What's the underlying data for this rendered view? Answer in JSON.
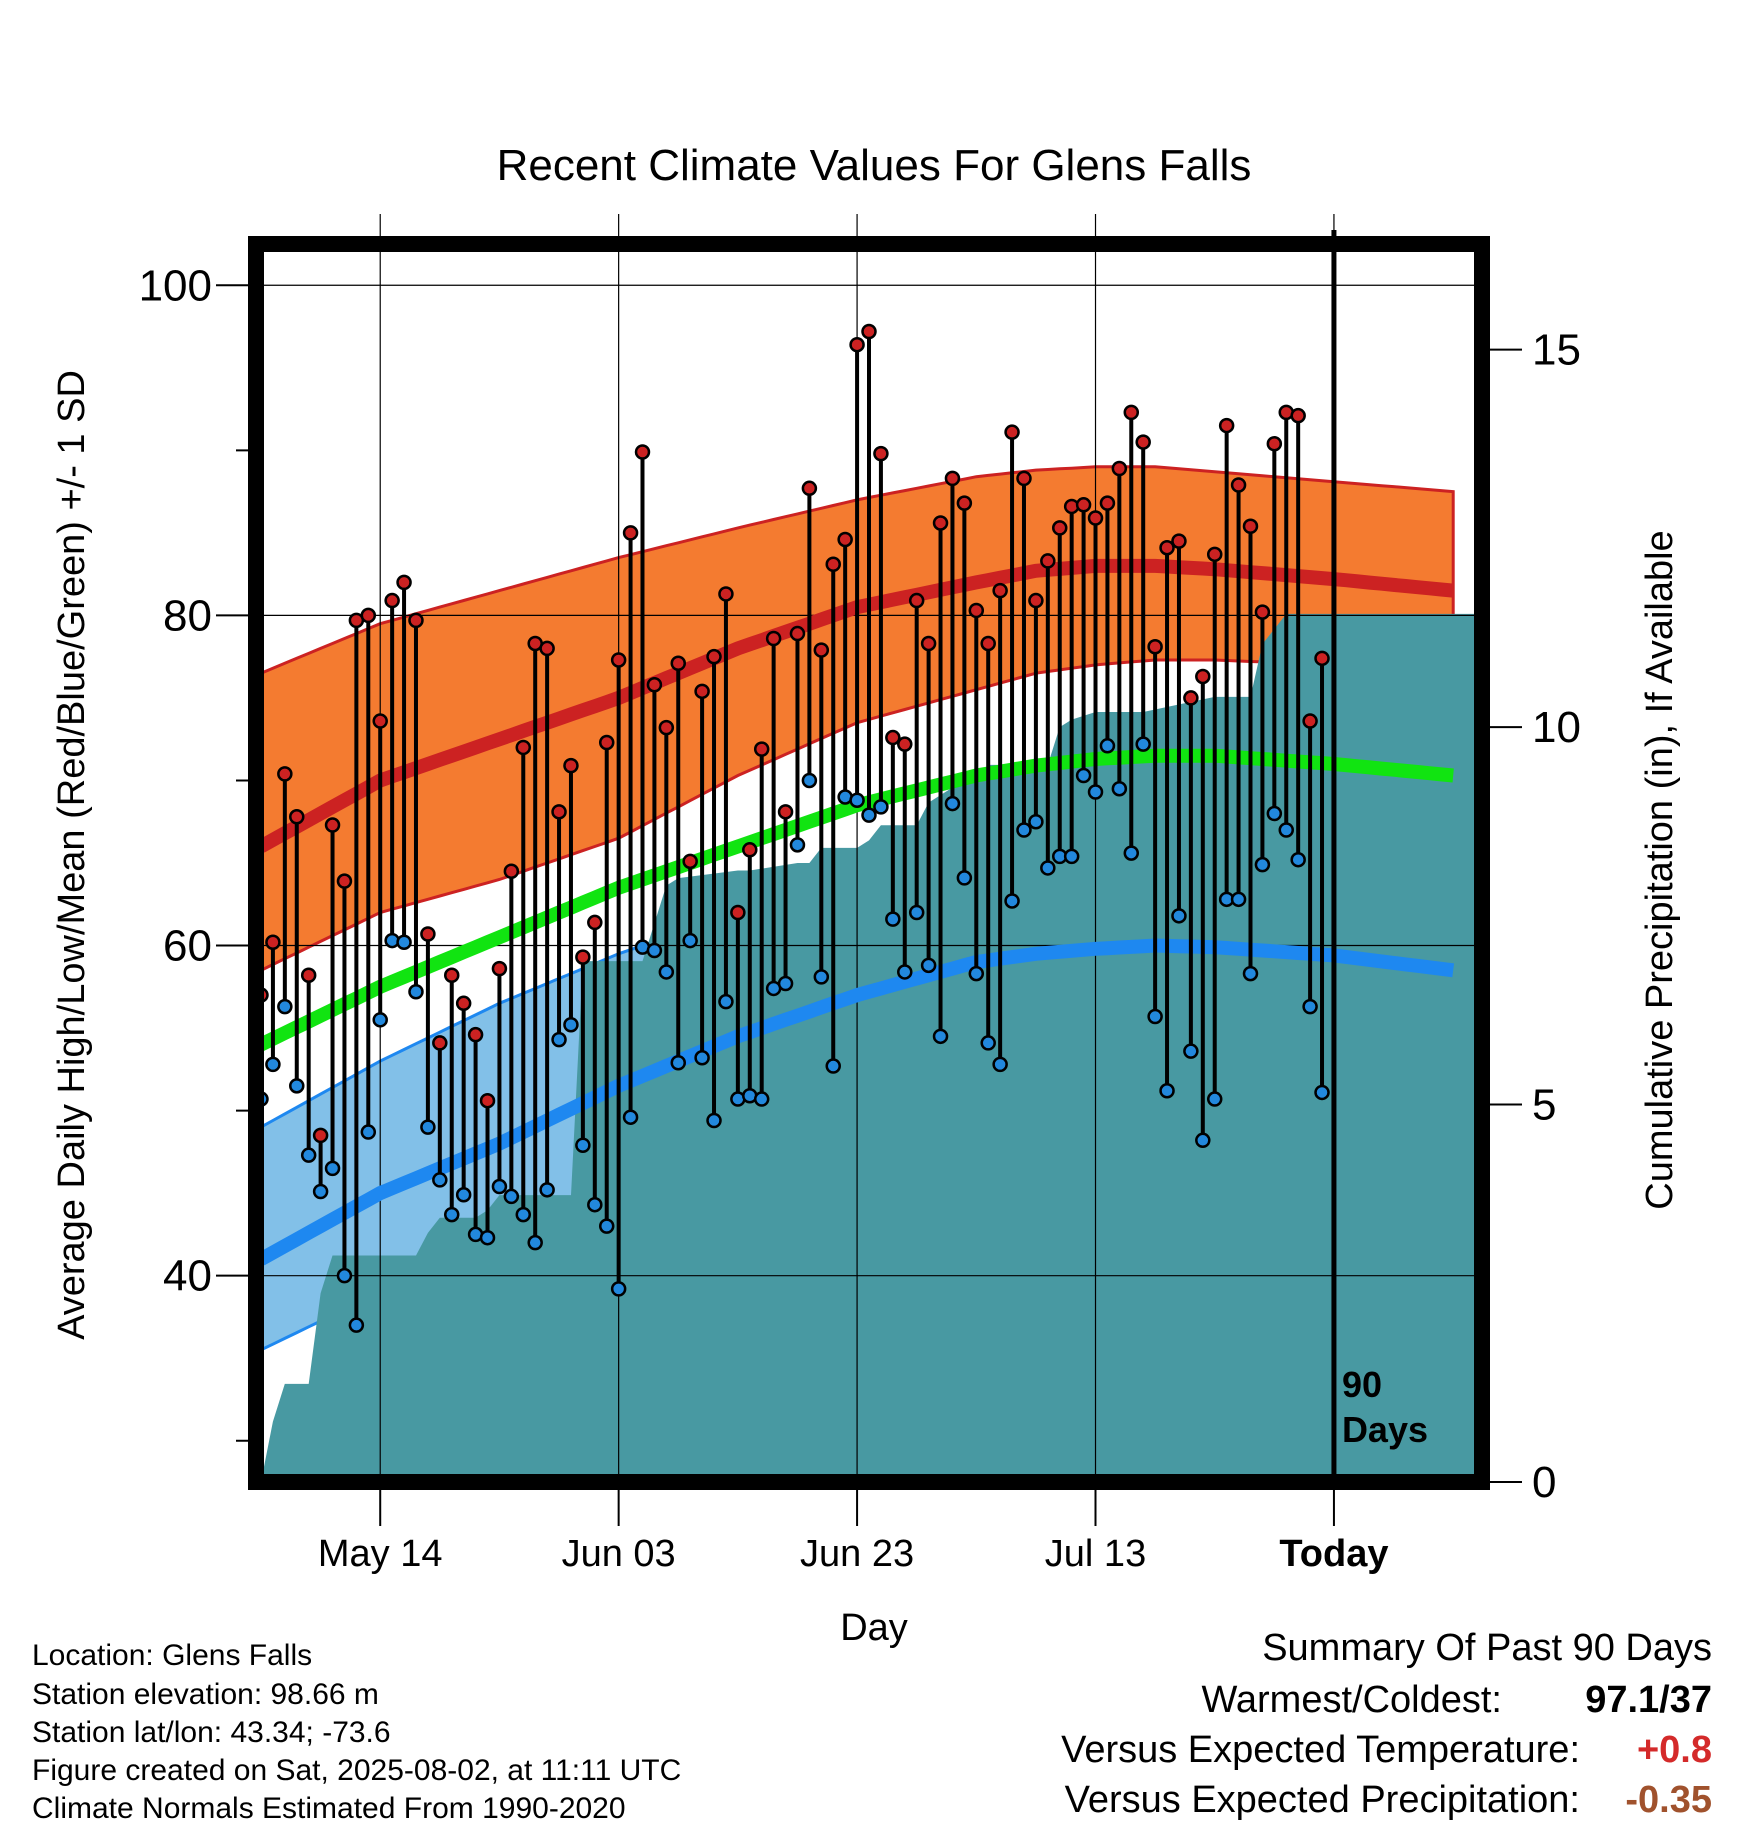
{
  "chart_data": {
    "type": "line",
    "title": "Recent Climate Values For Glens Falls",
    "xlabel": "Day",
    "ylabel": "Average Daily High/Low/Mean (Red/Blue/Green) +/- 1 SD",
    "y2label": "Cumulative Precipitation (in), If Available",
    "ylim": [
      27.5,
      102.5
    ],
    "y2lim": [
      0,
      16.4
    ],
    "xlim": [
      0,
      102
    ],
    "yticks": [
      40,
      60,
      80,
      100
    ],
    "y2ticks": [
      0,
      5,
      10,
      15
    ],
    "xticks": [
      {
        "day": 10,
        "label": "May 14"
      },
      {
        "day": 30,
        "label": "Jun 03"
      },
      {
        "day": 50,
        "label": "Jun 23"
      },
      {
        "day": 70,
        "label": "Jul 13"
      },
      {
        "day": 90,
        "label": "Today"
      }
    ],
    "today_marker": {
      "day": 90,
      "label_line1": "90",
      "label_line2": "Days"
    },
    "normals": {
      "days": [
        0,
        10,
        20,
        30,
        40,
        50,
        60,
        65,
        70,
        75,
        80,
        90,
        100
      ],
      "high_mean": [
        66,
        70,
        72.5,
        75,
        78,
        80.5,
        82,
        82.7,
        83,
        83,
        82.8,
        82.2,
        81.5
      ],
      "high_upper": [
        76.5,
        79.5,
        81.5,
        83.5,
        85.3,
        87,
        88.4,
        88.8,
        89,
        89,
        88.7,
        88.1,
        87.5
      ],
      "high_lower": [
        58.5,
        62,
        64,
        66.5,
        70.3,
        73.5,
        75.5,
        76.5,
        77,
        77.3,
        77.3,
        77,
        76.5
      ],
      "low_mean": [
        41,
        45,
        48,
        51.5,
        54.5,
        57,
        59,
        59.5,
        59.8,
        60,
        59.9,
        59.4,
        58.5
      ],
      "low_upper": [
        49,
        53,
        56.5,
        59.5,
        62,
        64,
        65.3,
        65.7,
        65.8,
        65.8,
        65.7,
        65.3,
        64.8
      ],
      "low_lower": [
        35.5,
        39,
        41.5,
        44.5,
        47.8,
        50.3,
        52.5,
        53.5,
        54,
        54.2,
        54.3,
        54,
        53.3
      ],
      "mean_mean": [
        54,
        57.5,
        60.5,
        63.5,
        66,
        68.5,
        70.3,
        70.9,
        71.3,
        71.5,
        71.5,
        71,
        70.3
      ]
    },
    "series": [
      {
        "name": "High",
        "color": "#cc2222",
        "values": [
          57,
          60.2,
          70.4,
          67.8,
          58.2,
          48.5,
          67.3,
          63.9,
          79.7,
          80,
          73.6,
          80.9,
          82,
          79.7,
          60.7,
          54.1,
          58.2,
          56.5,
          54.6,
          50.6,
          58.6,
          64.5,
          72,
          78.3,
          78,
          68.1,
          70.9,
          59.3,
          61.4,
          72.3,
          77.3,
          85,
          89.9,
          75.8,
          73.2,
          77.1,
          65.1,
          75.4,
          77.5,
          81.3,
          62,
          65.8,
          71.9,
          78.6,
          68.1,
          78.9,
          87.7,
          77.9,
          83.1,
          84.6,
          96.4,
          97.2,
          89.8,
          72.6,
          72.2,
          80.9,
          78.3,
          85.6,
          88.3,
          86.8,
          80.3,
          78.3,
          81.5,
          91.1,
          88.3,
          80.9,
          83.3,
          85.3,
          86.6,
          86.7,
          85.9,
          86.8,
          88.9,
          92.3,
          90.5,
          78.1,
          84.1,
          84.5,
          75,
          76.3,
          83.7,
          91.5,
          87.9,
          85.4,
          80.2,
          90.4,
          92.3,
          92.1,
          73.6,
          77.4
        ]
      },
      {
        "name": "Low",
        "color": "#2288dd",
        "values": [
          50.7,
          52.8,
          56.3,
          51.5,
          47.3,
          45.1,
          46.5,
          40,
          37,
          48.7,
          55.5,
          60.3,
          60.2,
          57.2,
          49,
          45.8,
          43.7,
          44.9,
          42.5,
          42.3,
          45.4,
          44.8,
          43.7,
          42,
          45.2,
          54.3,
          55.2,
          47.9,
          44.3,
          43,
          39.2,
          49.6,
          59.9,
          59.7,
          58.4,
          52.9,
          60.3,
          53.2,
          49.4,
          56.6,
          50.7,
          50.9,
          50.7,
          57.4,
          57.7,
          66.1,
          70,
          58.1,
          52.7,
          69,
          68.8,
          67.9,
          68.4,
          61.6,
          58.4,
          62,
          58.8,
          54.5,
          68.6,
          64.1,
          58.3,
          54.1,
          52.8,
          62.7,
          67,
          67.5,
          64.7,
          65.4,
          65.4,
          70.3,
          69.3,
          72.1,
          69.5,
          65.6,
          72.2,
          55.7,
          51.2,
          61.8,
          53.6,
          48.2,
          50.7,
          62.8,
          62.8,
          58.3,
          64.9,
          68,
          67,
          65.2,
          56.3,
          51.1
        ]
      }
    ],
    "precip": {
      "days": [
        0,
        1,
        2,
        4,
        5,
        6,
        7,
        10,
        13,
        14,
        15,
        16,
        18,
        19,
        20,
        21,
        24,
        25,
        26,
        27,
        30,
        31,
        32,
        33,
        34,
        35,
        40,
        41,
        45,
        46,
        47,
        50,
        51,
        52,
        55,
        56,
        58,
        60,
        61,
        63,
        66,
        67,
        68,
        70,
        73,
        74,
        80,
        83,
        84,
        86,
        90,
        96,
        102
      ],
      "values": [
        0,
        0.8,
        1.3,
        1.3,
        2.5,
        3,
        3,
        3,
        3,
        3.3,
        3.5,
        3.5,
        3.5,
        3.6,
        3.8,
        3.8,
        3.8,
        3.8,
        3.8,
        6.9,
        6.9,
        6.9,
        6.9,
        7.4,
        7.9,
        8,
        8.1,
        8.1,
        8.2,
        8.2,
        8.4,
        8.4,
        8.5,
        8.7,
        8.7,
        9,
        9.2,
        9.3,
        9.5,
        9.5,
        9.5,
        10,
        10.1,
        10.2,
        10.2,
        10.2,
        10.4,
        10.4,
        11.1,
        11.5,
        11.5,
        11.5,
        11.5
      ]
    },
    "colors": {
      "high_band": "#f47b30",
      "high_line": "#cc2222",
      "low_band": "#82c0e8",
      "low_line": "#1e88f0",
      "mean_line": "#11e411",
      "precip_fill": "#4899a2"
    }
  },
  "info": {
    "location": "Location: Glens Falls",
    "elevation": "Station elevation: 98.66 m",
    "latlon": "Station lat/lon: 43.34; -73.6",
    "created": "Figure created on Sat, 2025-08-02, at 11:11 UTC",
    "normals": "Climate Normals Estimated From 1990-2020"
  },
  "summary": {
    "title": "Summary Of Past 90 Days",
    "warm_label": "Warmest/Coldest:",
    "warm_value": "97.1/37",
    "temp_label": "Versus Expected Temperature:",
    "temp_value": "+0.8",
    "temp_color": "#d42a2a",
    "precip_label": "Versus Expected Precipitation:",
    "precip_value": "-0.35",
    "precip_color": "#a0522d"
  }
}
